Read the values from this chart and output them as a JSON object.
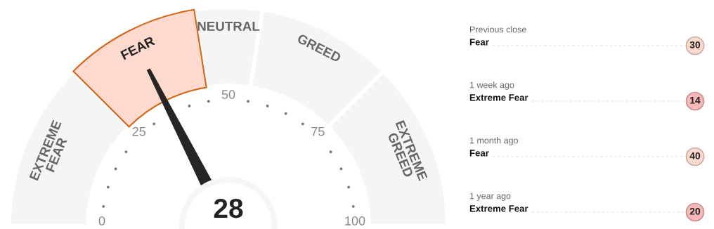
{
  "chart_data": [
    {
      "type": "donut",
      "categories": [
        "EXTREME FEAR",
        "FEAR",
        "NEUTRAL",
        "GREED",
        "EXTREME GREED"
      ],
      "values": [
        25,
        20,
        10,
        20,
        25
      ],
      "colors": [
        "#f5f5f5",
        "#fddacd",
        "#f5f5f5",
        "#f5f5f5",
        "#f5f5f5"
      ],
      "needle": "FEAR",
      "annotations": [
        "28",
        "0",
        "25",
        "50",
        "75",
        "100"
      ]
    },
    {
      "type": "other",
      "annotations": [
        "Previous close",
        "Fear",
        "30",
        "1 week ago",
        "Extreme Fear",
        "14",
        "1 month ago",
        "Fear",
        "40",
        "1 year ago",
        "Extreme Fear",
        "20"
      ],
      "colors": [
        "#fddacd",
        "#f7b8b8",
        "#fddacd",
        "#f7b8b8"
      ]
    }
  ]
}
